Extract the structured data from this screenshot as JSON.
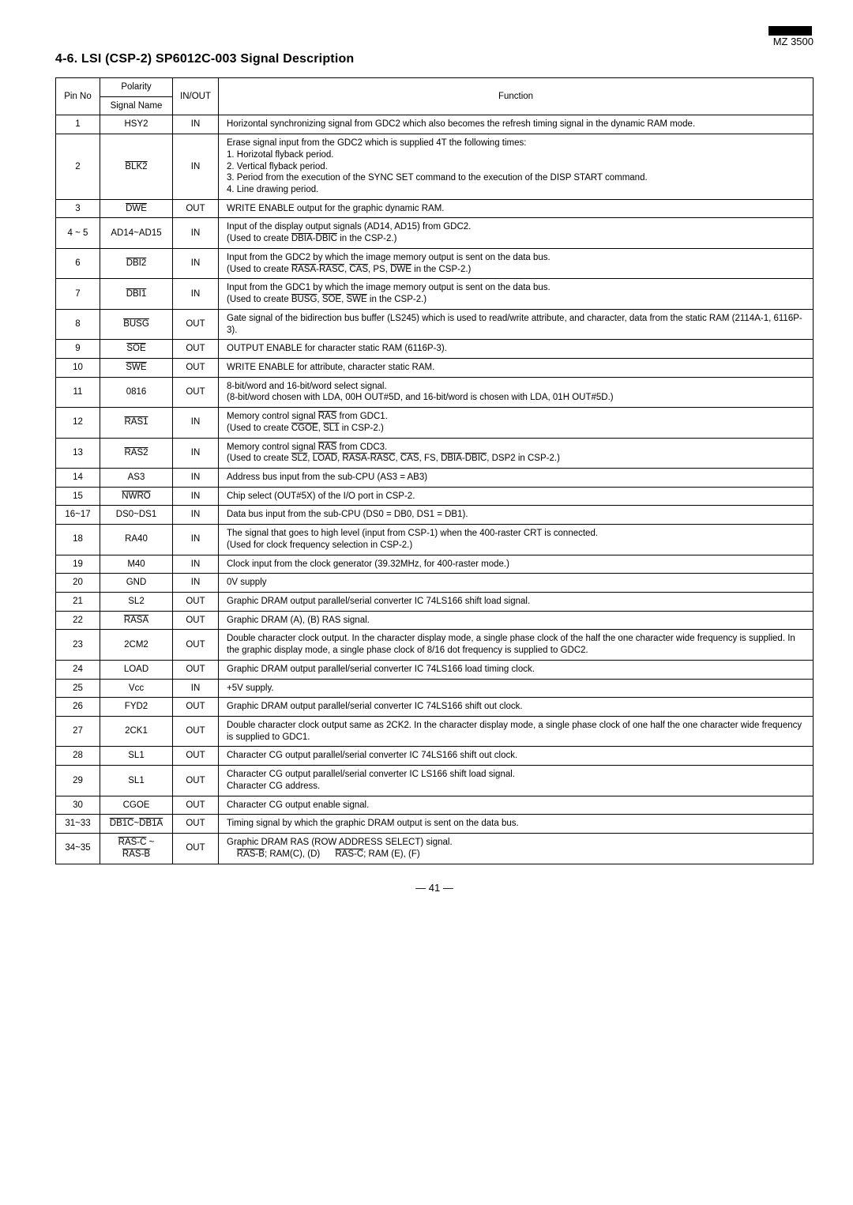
{
  "header": {
    "model": "MZ 3500",
    "section": "4-6.  LSI (CSP-2) SP6012C-003 Signal Description"
  },
  "table": {
    "head": {
      "pin": "Pin No",
      "polarity": "Polarity",
      "signal": "Signal Name",
      "io": "IN/OUT",
      "func": "Function"
    },
    "rows": [
      {
        "pin": "1",
        "sig": "HSY2",
        "io": "IN",
        "func": "Horizontal synchronizing signal from GDC2 which also becomes the refresh timing signal in the dynamic RAM mode."
      },
      {
        "pin": "2",
        "sig": "<span class='ov'>BLK2</span>",
        "io": "IN",
        "func": "Erase signal input from the GDC2 which is supplied 4T the following times:<br>1. Horizotal flyback period.<br>2. Vertical flyback period.<br>3. Period from the execution of the SYNC SET command to the execution of the DISP START command.<br>4. Line drawing period."
      },
      {
        "pin": "3",
        "sig": "<span class='ov'>DWE</span>",
        "io": "OUT",
        "func": "WRITE ENABLE output for the graphic dynamic RAM."
      },
      {
        "pin": "4 ~ 5",
        "sig": "AD14~AD15",
        "io": "IN",
        "func": "Input of the display output signals (AD14, AD15) from GDC2.<br>(Used to create <span class='ov'>DBIA</span>-<span class='ov'>DBIC</span> in the CSP-2.)"
      },
      {
        "pin": "6",
        "sig": "<span class='ov'>DBI2</span>",
        "io": "IN",
        "func": "Input from the GDC2 by which the image memory output is sent on the data bus.<br>(Used to create <span class='ov'>RASA</span>-<span class='ov'>RASC</span>, <span class='ov'>CAS</span>, PS, <span class='ov'>DWE</span> in the CSP-2.)"
      },
      {
        "pin": "7",
        "sig": "<span class='ov'>DBI1</span>",
        "io": "IN",
        "func": "Input from the GDC1 by which the image memory output is sent on the data bus.<br>(Used to create <span class='ov'>BUSG</span>, <span class='ov'>SOE</span>, <span class='ov'>SWE</span> in the CSP-2.)"
      },
      {
        "pin": "8",
        "sig": "<span class='ov'>BUSG</span>",
        "io": "OUT",
        "func": "Gate signal of the bidirection bus buffer (LS245) which is used to read/write attribute, and character, data from the static RAM (2114A-1, 6116P-3)."
      },
      {
        "pin": "9",
        "sig": "<span class='ov'>SOE</span>",
        "io": "OUT",
        "func": "OUTPUT ENABLE for character static RAM (6116P-3)."
      },
      {
        "pin": "10",
        "sig": "<span class='ov'>SWE</span>",
        "io": "OUT",
        "func": "WRITE ENABLE for attribute, character static RAM."
      },
      {
        "pin": "11",
        "sig": "0816",
        "io": "OUT",
        "func": "8-bit/word and 16-bit/word select signal.<br>(8-bit/word chosen with LDA, 00H OUT#5D, and 16-bit/word is chosen with LDA, 01H OUT#5D.)"
      },
      {
        "pin": "12",
        "sig": "<span class='ov'>RAS1</span>",
        "io": "IN",
        "func": "Memory control signal <span class='ov'>RAS</span> from GDC1.<br>(Used to create <span class='ov'>CGOE</span>, <span class='ov'>SL1</span> in CSP-2.)"
      },
      {
        "pin": "13",
        "sig": "<span class='ov'>RAS2</span>",
        "io": "IN",
        "func": "Memory control signal <span class='ov'>RAS</span> from CDC3.<br>(Used to create <span class='ov'>SL2</span>, <span class='ov'>LOAD</span>, <span class='ov'>RASA</span>-<span class='ov'>RASC</span>, <span class='ov'>CAS</span>, FS, <span class='ov'>DBIA</span>-<span class='ov'>DBIC</span>, DSP2 in CSP-2.)"
      },
      {
        "pin": "14",
        "sig": "AS3",
        "io": "IN",
        "func": "Address bus input from the sub-CPU (AS3 = AB3)"
      },
      {
        "pin": "15",
        "sig": "<span class='ov'>NWRO</span>",
        "io": "IN",
        "func": "Chip select (OUT#5X) of the I/O port in CSP-2."
      },
      {
        "pin": "16~17",
        "sig": "DS0~DS1",
        "io": "IN",
        "func": "Data bus input from the sub-CPU (DS0 = DB0, DS1 = DB1)."
      },
      {
        "pin": "18",
        "sig": "RA40",
        "io": "IN",
        "func": "The signal that goes to high level (input from CSP-1) when the 400-raster CRT is connected.<br>(Used for clock frequency selection in CSP-2.)"
      },
      {
        "pin": "19",
        "sig": "M40",
        "io": "IN",
        "func": "Clock input from the clock generator (39.32MHz, for 400-raster mode.)"
      },
      {
        "pin": "20",
        "sig": "GND",
        "io": "IN",
        "func": "0V supply"
      },
      {
        "pin": "21",
        "sig": "SL2",
        "io": "OUT",
        "func": "Graphic DRAM output parallel/serial converter IC 74LS166 shift load signal."
      },
      {
        "pin": "22",
        "sig": "<span class='ov'>RASA</span>",
        "io": "OUT",
        "func": "Graphic DRAM (A), (B) RAS signal."
      },
      {
        "pin": "23",
        "sig": "2CM2",
        "io": "OUT",
        "func": "Double character clock output. In the character display mode, a single phase clock of the half the one character wide frequency is supplied. In the graphic display mode, a single phase clock of 8/16 dot frequency is supplied to GDC2."
      },
      {
        "pin": "24",
        "sig": "LOAD",
        "io": "OUT",
        "func": "Graphic DRAM output parallel/serial converter IC 74LS166 load timing clock."
      },
      {
        "pin": "25",
        "sig": "Vcc",
        "io": "IN",
        "func": "+5V supply."
      },
      {
        "pin": "26",
        "sig": "FYD2",
        "io": "OUT",
        "func": "Graphic DRAM output parallel/serial converter IC 74LS166 shift out clock."
      },
      {
        "pin": "27",
        "sig": "2CK1",
        "io": "OUT",
        "func": "Double character clock output same as 2CK2. In the character display mode, a single phase clock of one half the one character wide frequency is supplied to GDC1."
      },
      {
        "pin": "28",
        "sig": "SL1",
        "io": "OUT",
        "func": "Character CG output parallel/serial converter IC 74LS166 shift out clock."
      },
      {
        "pin": "29",
        "sig": "SL1",
        "io": "OUT",
        "func": "Character CG output parallel/serial converter IC LS166 shift load signal.<br>Character CG address."
      },
      {
        "pin": "30",
        "sig": "CGOE",
        "io": "OUT",
        "func": "Character CG output enable signal."
      },
      {
        "pin": "31~33",
        "sig": "<span class='ov'>DB1C</span>~<span class='ov'>DB1A</span>",
        "io": "OUT",
        "func": "Timing signal by which the graphic DRAM output is sent on the data bus."
      },
      {
        "pin": "34~35",
        "sig": "<span class='ov'>RAS-C</span> ~<br><span class='ov'>RAS-B</span>",
        "io": "OUT",
        "func": "Graphic DRAM RAS (ROW ADDRESS SELECT) signal.<br>&nbsp;&nbsp;&nbsp;&nbsp;<span class='ov'>RAS-B</span>; RAM(C), (D)&nbsp;&nbsp;&nbsp;&nbsp;&nbsp;&nbsp;<span class='ov'>RAS-C</span>; RAM (E), (F)"
      }
    ]
  },
  "footer": {
    "page": "— 41 —"
  }
}
